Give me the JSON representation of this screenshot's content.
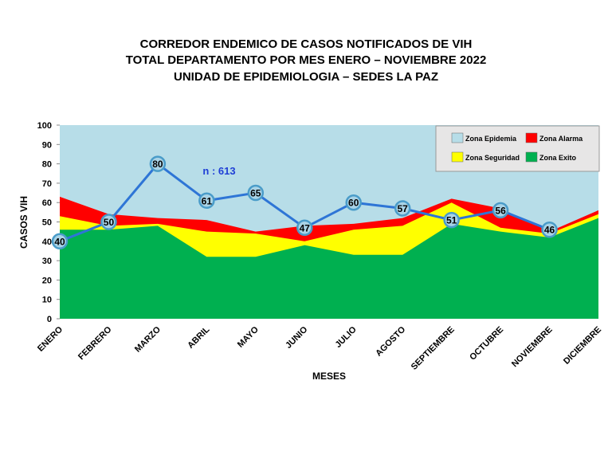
{
  "chart_data": {
    "type": "area",
    "title": [
      "CORREDOR ENDEMICO  DE CASOS NOTIFICADOS  DE VIH",
      "TOTAL DEPARTAMENTO  POR MES ENERO – NOVIEMBRE  2022",
      "UNIDAD  DE EPIDEMIOLOGIA  – SEDES LA PAZ"
    ],
    "x_label": "MESES",
    "y_label": "CASOS VIH",
    "annotation": "n : 613",
    "categories": [
      "ENERO",
      "FEBRERO",
      "MARZO",
      "ABRIL",
      "MAYO",
      "JUNIO",
      "JULIO",
      "AGOSTO",
      "SEPTIEMBRE",
      "OCTUBRE",
      "NOVIEMBRE",
      "DICIEMBRE"
    ],
    "series": [
      {
        "name": "Zona Epidemia",
        "color": "#b7dde8",
        "values": [
          100,
          100,
          100,
          100,
          100,
          100,
          100,
          100,
          100,
          100,
          100,
          100
        ]
      },
      {
        "name": "Zona Alarma",
        "color": "#ff0000",
        "values": [
          63,
          54,
          52,
          51,
          45,
          48,
          49,
          52,
          62,
          57,
          45,
          56
        ]
      },
      {
        "name": "Zona Seguridad",
        "color": "#ffff00",
        "values": [
          53,
          48,
          49,
          45,
          44,
          40,
          46,
          48,
          60,
          47,
          44,
          54
        ]
      },
      {
        "name": "Zona Exito",
        "color": "#00b050",
        "values": [
          46,
          46,
          48,
          32,
          32,
          38,
          33,
          33,
          49,
          45,
          42,
          52
        ]
      }
    ],
    "cases": {
      "color": "#2e75d6",
      "values": [
        40,
        50,
        80,
        61,
        65,
        47,
        60,
        57,
        51,
        56,
        46,
        null
      ]
    },
    "ylim": [
      0,
      100
    ],
    "yticks": [
      0,
      10,
      20,
      30,
      40,
      50,
      60,
      70,
      80,
      90,
      100
    ]
  }
}
